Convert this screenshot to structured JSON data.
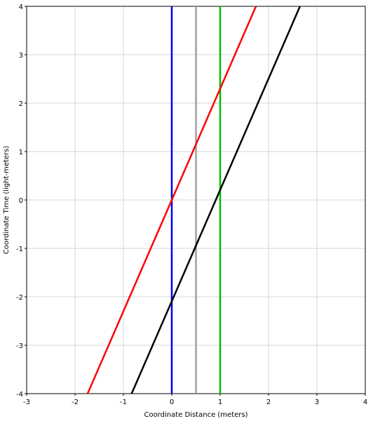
{
  "chart_data": {
    "type": "line",
    "title": "",
    "xlabel": "Coordinate Distance (meters)",
    "ylabel": "Coordinate Time (light-meters)",
    "xlim": [
      -3,
      4
    ],
    "ylim": [
      -4,
      4
    ],
    "x_ticks": [
      -3,
      -2,
      -1,
      0,
      1,
      2,
      3,
      4
    ],
    "y_ticks": [
      -4,
      -3,
      -2,
      -1,
      0,
      1,
      2,
      3,
      4
    ],
    "grid": true,
    "legend": "none",
    "series": [
      {
        "color": "#0000ff",
        "points": [
          [
            0,
            -4
          ],
          [
            0,
            4
          ]
        ]
      },
      {
        "color": "#a0a0a0",
        "points": [
          [
            0.5,
            -4
          ],
          [
            0.5,
            4
          ]
        ]
      },
      {
        "color": "#00c000",
        "points": [
          [
            1,
            -4
          ],
          [
            1,
            4
          ]
        ]
      },
      {
        "color": "#ff0000",
        "points": [
          [
            -1.74,
            -4
          ],
          [
            1.74,
            4
          ]
        ]
      },
      {
        "color": "#000000",
        "points": [
          [
            -0.83,
            -4
          ],
          [
            2.65,
            4
          ]
        ]
      }
    ]
  }
}
